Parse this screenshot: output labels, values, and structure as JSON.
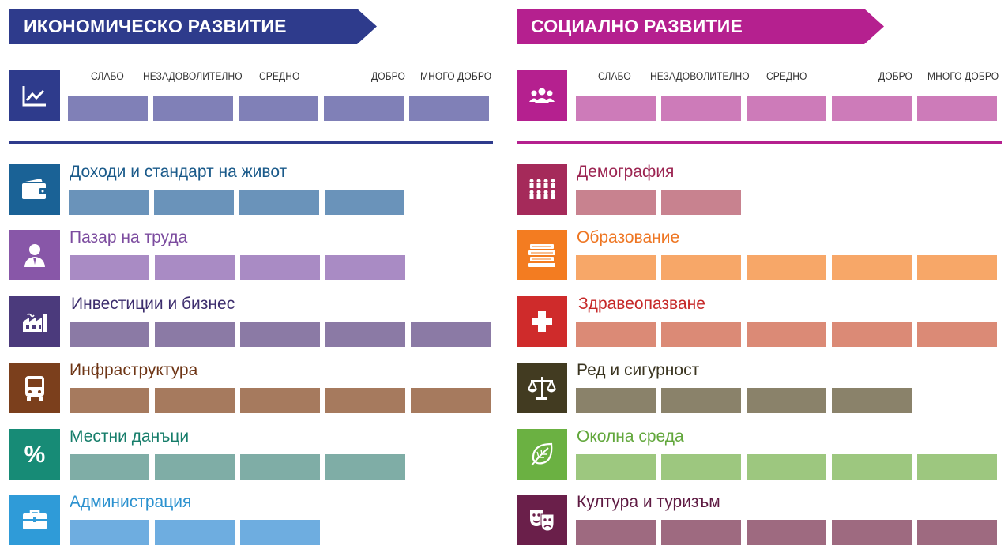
{
  "colors": {
    "economic_primary": "#2e3b8c",
    "social_primary": "#b5208f",
    "economic_scale_bar": "#8080b7",
    "social_scale_bar": "#cd7bb9"
  },
  "scale_labels": [
    "СЛАБО",
    "НЕЗАДОВОЛИТЕЛНО",
    "СРЕДНО",
    "ДОБРО",
    "МНОГО ДОБРО"
  ],
  "economic": {
    "title": "ИКОНОМИЧЕСКО РАЗВИТИЕ",
    "header_icon": "line-chart-icon",
    "rows": [
      {
        "label": "Доходи и стандарт на живот",
        "icon": "wallet-icon",
        "score": 4,
        "icon_color": "#1a6296",
        "bar_color": "#6a93ba",
        "text_color": "#1a5a8a"
      },
      {
        "label": "Пазар на труда",
        "icon": "worker-icon",
        "score": 4,
        "icon_color": "#8857a8",
        "bar_color": "#a98bc4",
        "text_color": "#7c4c9f"
      },
      {
        "label": "Инвестиции и бизнес",
        "icon": "factory-icon",
        "score": 5,
        "icon_color": "#4b3a7c",
        "bar_color": "#8b7aa5",
        "text_color": "#3d2e6e"
      },
      {
        "label": "Инфраструктура",
        "icon": "bus-icon",
        "score": 5,
        "icon_color": "#7b3f1c",
        "bar_color": "#a67a5e",
        "text_color": "#6e3515"
      },
      {
        "label": "Местни данъци",
        "icon": "percent-icon",
        "score": 4,
        "icon_color": "#178b76",
        "bar_color": "#7fada6",
        "text_color": "#167d6a"
      },
      {
        "label": "Администрация",
        "icon": "briefcase-icon",
        "score": 3,
        "icon_color": "#2f9bd8",
        "bar_color": "#6eade0",
        "text_color": "#2b91cf"
      }
    ]
  },
  "social": {
    "title": "СОЦИАЛНО РАЗВИТИЕ",
    "header_icon": "people-icon",
    "rows": [
      {
        "label": "Демография",
        "icon": "population-icon",
        "score": 2,
        "icon_color": "#a52a5a",
        "bar_color": "#c8828f",
        "text_color": "#9c2552"
      },
      {
        "label": "Образование",
        "icon": "books-icon",
        "score": 5,
        "icon_color": "#f37c21",
        "bar_color": "#f7a768",
        "text_color": "#ee7623"
      },
      {
        "label": "Здравеопазване",
        "icon": "medical-cross-icon",
        "score": 5,
        "icon_color": "#cf2b2b",
        "bar_color": "#db8a76",
        "text_color": "#c62828"
      },
      {
        "label": "Ред и сигурност",
        "icon": "scales-icon",
        "score": 4,
        "icon_color": "#423b21",
        "bar_color": "#8a826a",
        "text_color": "#3a3420"
      },
      {
        "label": "Околна среда",
        "icon": "leaf-icon",
        "score": 5,
        "icon_color": "#6bb142",
        "bar_color": "#9dc77f",
        "text_color": "#62a73c"
      },
      {
        "label": "Култура и туризъм",
        "icon": "theater-masks-icon",
        "score": 5,
        "icon_color": "#6a1f4a",
        "bar_color": "#9e6a80",
        "text_color": "#5e1a42"
      }
    ]
  }
}
